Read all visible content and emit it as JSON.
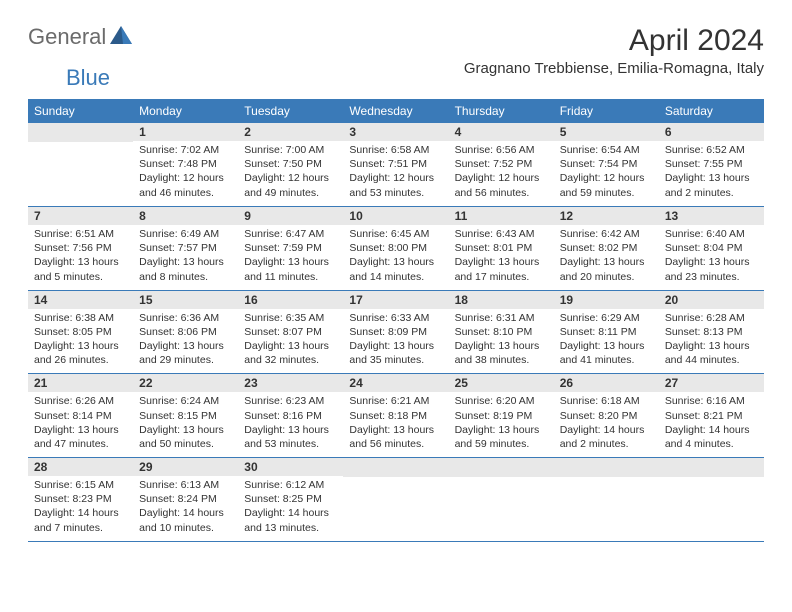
{
  "logo": {
    "general": "General",
    "blue": "Blue"
  },
  "title": "April 2024",
  "location": "Gragnano Trebbiense, Emilia-Romagna, Italy",
  "colors": {
    "header_bg": "#3a7ab8",
    "text": "#333333",
    "day_bg": "#e8e8e8",
    "logo_gray": "#6b6b6b",
    "logo_blue": "#3a7ab8"
  },
  "weekdays": [
    "Sunday",
    "Monday",
    "Tuesday",
    "Wednesday",
    "Thursday",
    "Friday",
    "Saturday"
  ],
  "weeks": [
    [
      {
        "day": "",
        "sunrise": "",
        "sunset": "",
        "daylight": ""
      },
      {
        "day": "1",
        "sunrise": "Sunrise: 7:02 AM",
        "sunset": "Sunset: 7:48 PM",
        "daylight": "Daylight: 12 hours and 46 minutes."
      },
      {
        "day": "2",
        "sunrise": "Sunrise: 7:00 AM",
        "sunset": "Sunset: 7:50 PM",
        "daylight": "Daylight: 12 hours and 49 minutes."
      },
      {
        "day": "3",
        "sunrise": "Sunrise: 6:58 AM",
        "sunset": "Sunset: 7:51 PM",
        "daylight": "Daylight: 12 hours and 53 minutes."
      },
      {
        "day": "4",
        "sunrise": "Sunrise: 6:56 AM",
        "sunset": "Sunset: 7:52 PM",
        "daylight": "Daylight: 12 hours and 56 minutes."
      },
      {
        "day": "5",
        "sunrise": "Sunrise: 6:54 AM",
        "sunset": "Sunset: 7:54 PM",
        "daylight": "Daylight: 12 hours and 59 minutes."
      },
      {
        "day": "6",
        "sunrise": "Sunrise: 6:52 AM",
        "sunset": "Sunset: 7:55 PM",
        "daylight": "Daylight: 13 hours and 2 minutes."
      }
    ],
    [
      {
        "day": "7",
        "sunrise": "Sunrise: 6:51 AM",
        "sunset": "Sunset: 7:56 PM",
        "daylight": "Daylight: 13 hours and 5 minutes."
      },
      {
        "day": "8",
        "sunrise": "Sunrise: 6:49 AM",
        "sunset": "Sunset: 7:57 PM",
        "daylight": "Daylight: 13 hours and 8 minutes."
      },
      {
        "day": "9",
        "sunrise": "Sunrise: 6:47 AM",
        "sunset": "Sunset: 7:59 PM",
        "daylight": "Daylight: 13 hours and 11 minutes."
      },
      {
        "day": "10",
        "sunrise": "Sunrise: 6:45 AM",
        "sunset": "Sunset: 8:00 PM",
        "daylight": "Daylight: 13 hours and 14 minutes."
      },
      {
        "day": "11",
        "sunrise": "Sunrise: 6:43 AM",
        "sunset": "Sunset: 8:01 PM",
        "daylight": "Daylight: 13 hours and 17 minutes."
      },
      {
        "day": "12",
        "sunrise": "Sunrise: 6:42 AM",
        "sunset": "Sunset: 8:02 PM",
        "daylight": "Daylight: 13 hours and 20 minutes."
      },
      {
        "day": "13",
        "sunrise": "Sunrise: 6:40 AM",
        "sunset": "Sunset: 8:04 PM",
        "daylight": "Daylight: 13 hours and 23 minutes."
      }
    ],
    [
      {
        "day": "14",
        "sunrise": "Sunrise: 6:38 AM",
        "sunset": "Sunset: 8:05 PM",
        "daylight": "Daylight: 13 hours and 26 minutes."
      },
      {
        "day": "15",
        "sunrise": "Sunrise: 6:36 AM",
        "sunset": "Sunset: 8:06 PM",
        "daylight": "Daylight: 13 hours and 29 minutes."
      },
      {
        "day": "16",
        "sunrise": "Sunrise: 6:35 AM",
        "sunset": "Sunset: 8:07 PM",
        "daylight": "Daylight: 13 hours and 32 minutes."
      },
      {
        "day": "17",
        "sunrise": "Sunrise: 6:33 AM",
        "sunset": "Sunset: 8:09 PM",
        "daylight": "Daylight: 13 hours and 35 minutes."
      },
      {
        "day": "18",
        "sunrise": "Sunrise: 6:31 AM",
        "sunset": "Sunset: 8:10 PM",
        "daylight": "Daylight: 13 hours and 38 minutes."
      },
      {
        "day": "19",
        "sunrise": "Sunrise: 6:29 AM",
        "sunset": "Sunset: 8:11 PM",
        "daylight": "Daylight: 13 hours and 41 minutes."
      },
      {
        "day": "20",
        "sunrise": "Sunrise: 6:28 AM",
        "sunset": "Sunset: 8:13 PM",
        "daylight": "Daylight: 13 hours and 44 minutes."
      }
    ],
    [
      {
        "day": "21",
        "sunrise": "Sunrise: 6:26 AM",
        "sunset": "Sunset: 8:14 PM",
        "daylight": "Daylight: 13 hours and 47 minutes."
      },
      {
        "day": "22",
        "sunrise": "Sunrise: 6:24 AM",
        "sunset": "Sunset: 8:15 PM",
        "daylight": "Daylight: 13 hours and 50 minutes."
      },
      {
        "day": "23",
        "sunrise": "Sunrise: 6:23 AM",
        "sunset": "Sunset: 8:16 PM",
        "daylight": "Daylight: 13 hours and 53 minutes."
      },
      {
        "day": "24",
        "sunrise": "Sunrise: 6:21 AM",
        "sunset": "Sunset: 8:18 PM",
        "daylight": "Daylight: 13 hours and 56 minutes."
      },
      {
        "day": "25",
        "sunrise": "Sunrise: 6:20 AM",
        "sunset": "Sunset: 8:19 PM",
        "daylight": "Daylight: 13 hours and 59 minutes."
      },
      {
        "day": "26",
        "sunrise": "Sunrise: 6:18 AM",
        "sunset": "Sunset: 8:20 PM",
        "daylight": "Daylight: 14 hours and 2 minutes."
      },
      {
        "day": "27",
        "sunrise": "Sunrise: 6:16 AM",
        "sunset": "Sunset: 8:21 PM",
        "daylight": "Daylight: 14 hours and 4 minutes."
      }
    ],
    [
      {
        "day": "28",
        "sunrise": "Sunrise: 6:15 AM",
        "sunset": "Sunset: 8:23 PM",
        "daylight": "Daylight: 14 hours and 7 minutes."
      },
      {
        "day": "29",
        "sunrise": "Sunrise: 6:13 AM",
        "sunset": "Sunset: 8:24 PM",
        "daylight": "Daylight: 14 hours and 10 minutes."
      },
      {
        "day": "30",
        "sunrise": "Sunrise: 6:12 AM",
        "sunset": "Sunset: 8:25 PM",
        "daylight": "Daylight: 14 hours and 13 minutes."
      },
      {
        "day": "",
        "sunrise": "",
        "sunset": "",
        "daylight": ""
      },
      {
        "day": "",
        "sunrise": "",
        "sunset": "",
        "daylight": ""
      },
      {
        "day": "",
        "sunrise": "",
        "sunset": "",
        "daylight": ""
      },
      {
        "day": "",
        "sunrise": "",
        "sunset": "",
        "daylight": ""
      }
    ]
  ]
}
